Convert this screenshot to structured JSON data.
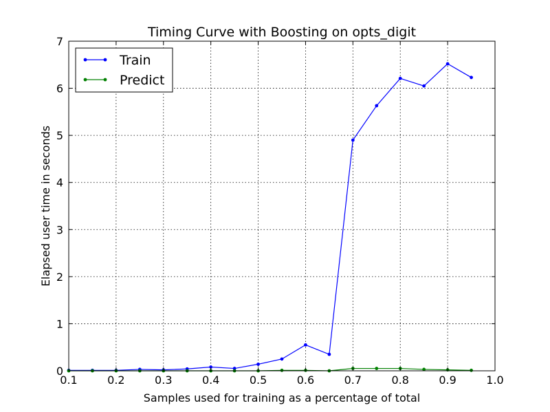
{
  "chart_data": {
    "type": "line",
    "title": "Timing Curve with Boosting on opts_digit",
    "xlabel": "Samples used for training as a percentage of total",
    "ylabel": "Elapsed user time in seconds",
    "xlim": [
      0.1,
      1.0
    ],
    "ylim": [
      0,
      7
    ],
    "xticks": [
      "0.1",
      "0.2",
      "0.3",
      "0.4",
      "0.5",
      "0.6",
      "0.7",
      "0.8",
      "0.9",
      "1.0"
    ],
    "yticks": [
      "0",
      "1",
      "2",
      "3",
      "4",
      "5",
      "6",
      "7"
    ],
    "grid": true,
    "legend_position": "top-left",
    "x": [
      0.1,
      0.15,
      0.2,
      0.25,
      0.3,
      0.35,
      0.4,
      0.45,
      0.5,
      0.55,
      0.6,
      0.65,
      0.7,
      0.75,
      0.8,
      0.85,
      0.9,
      0.95
    ],
    "series": [
      {
        "name": "Train",
        "color": "#0000ff",
        "values": [
          0.01,
          0.01,
          0.01,
          0.03,
          0.02,
          0.04,
          0.08,
          0.05,
          0.14,
          0.25,
          0.55,
          0.35,
          4.9,
          5.63,
          6.21,
          6.05,
          6.52,
          6.23
        ]
      },
      {
        "name": "Predict",
        "color": "#008000",
        "values": [
          0.0,
          0.0,
          0.0,
          0.0,
          0.0,
          0.0,
          0.0,
          0.0,
          0.0,
          0.01,
          0.01,
          0.0,
          0.05,
          0.05,
          0.05,
          0.03,
          0.02,
          0.01
        ]
      }
    ]
  }
}
